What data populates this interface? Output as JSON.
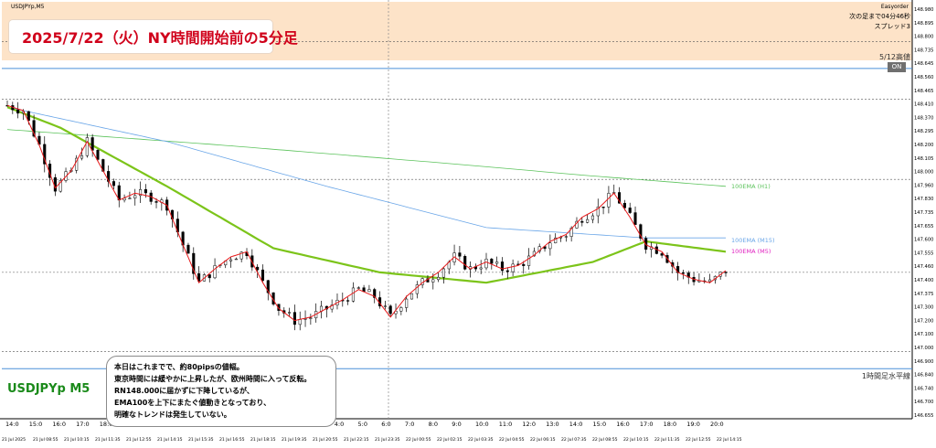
{
  "header": {
    "symbol_tab": "USDJPYp,M5",
    "top_right_1": "Easyorder",
    "top_right_2": "次の足まで04分46秒",
    "top_right_3": "スプレッド3",
    "on_button": "ON"
  },
  "title": "2025/7/22（火）NY時間開始前の5分足",
  "symbol_label": "USDJPYp M5",
  "level_labels": {
    "high_512": "5/12高値",
    "h1_level": "1時間足水平線"
  },
  "ema_labels": {
    "h1": "100EMA (H1)",
    "m15": "100EMA (M15)",
    "m5": "100EMA (M5)"
  },
  "note": {
    "lines": [
      "本日はこれまでで、約80pipsの値幅。",
      "東京時間には緩やかに上昇したが、欧州時間に入って反転。",
      "RN148.000に届かずに下降しているが、",
      "EMA100を上下にまたぐ値動きとなっており、",
      "明確なトレンドは発生していない。"
    ]
  },
  "colors": {
    "header_band": "#fde3c8",
    "title_red": "#d0021b",
    "symbol_green": "#1a8a1a",
    "ema_h1": "#5cc35c",
    "ema_m15": "#6aa6e8",
    "ema_m5": "#7cc41a",
    "fast_ma": "#e8191a",
    "level_blue": "#4a90d9"
  },
  "chart_data": {
    "type": "candlestick",
    "symbol": "USDJPYp",
    "timeframe": "M5",
    "y_ticks": [
      "148.980",
      "148.895",
      "148.800",
      "148.735",
      "148.645",
      "148.560",
      "148.465",
      "148.410",
      "148.370",
      "148.295",
      "148.200",
      "148.105",
      "148.000",
      "147.960",
      "147.830",
      "147.735",
      "147.655",
      "147.600",
      "147.555",
      "147.460",
      "147.400",
      "147.375",
      "147.300",
      "147.200",
      "147.100",
      "147.000",
      "146.900",
      "146.840",
      "146.740",
      "146.700",
      "146.655"
    ],
    "x_top_labels": [
      "14:0",
      "15:0",
      "16:0",
      "17:0",
      "18:0",
      "19:0",
      "20:0",
      "21:0",
      "22:0",
      "23:0",
      "0:0",
      "1:0",
      "2:0",
      "3:0",
      "4:0",
      "5:0",
      "6:0",
      "7:0",
      "8:0",
      "9:0",
      "10:0",
      "11:0",
      "12:0",
      "13:0",
      "14:0",
      "15:0",
      "16:0",
      "17:0",
      "18:0",
      "19:0",
      "20:0"
    ],
    "x_bottom_labels": [
      "21 Jul 2025",
      "21 Jul 08:55",
      "21 Jul 10:15",
      "21 Jul 11:35",
      "21 Jul 12:55",
      "21 Jul 14:15",
      "21 Jul 15:35",
      "21 Jul 16:55",
      "21 Jul 18:15",
      "21 Jul 19:35",
      "21 Jul 20:55",
      "21 Jul 22:15",
      "21 Jul 23:35",
      "22 Jul 00:55",
      "22 Jul 02:15",
      "22 Jul 03:35",
      "22 Jul 04:55",
      "22 Jul 06:15",
      "22 Jul 07:35",
      "22 Jul 08:55",
      "22 Jul 10:15",
      "22 Jul 11:35",
      "22 Jul 12:55",
      "22 Jul 14:15"
    ],
    "horizontal_levels": [
      148.8,
      148.645,
      148.465,
      148.0,
      147.46,
      147.0,
      146.9
    ],
    "price_path": [
      [
        0,
        148.43
      ],
      [
        3,
        148.4
      ],
      [
        6,
        148.2
      ],
      [
        9,
        147.95
      ],
      [
        12,
        148.05
      ],
      [
        15,
        148.22
      ],
      [
        18,
        148.05
      ],
      [
        21,
        147.88
      ],
      [
        24,
        147.92
      ],
      [
        27,
        147.9
      ],
      [
        30,
        147.85
      ],
      [
        33,
        147.62
      ],
      [
        36,
        147.4
      ],
      [
        39,
        147.48
      ],
      [
        42,
        147.55
      ],
      [
        45,
        147.58
      ],
      [
        48,
        147.4
      ],
      [
        51,
        147.25
      ],
      [
        54,
        147.18
      ],
      [
        57,
        147.2
      ],
      [
        60,
        147.25
      ],
      [
        63,
        147.3
      ],
      [
        66,
        147.36
      ],
      [
        69,
        147.32
      ],
      [
        72,
        147.2
      ],
      [
        75,
        147.32
      ],
      [
        78,
        147.4
      ],
      [
        81,
        147.46
      ],
      [
        84,
        147.55
      ],
      [
        87,
        147.48
      ],
      [
        90,
        147.52
      ],
      [
        93,
        147.48
      ],
      [
        96,
        147.5
      ],
      [
        99,
        147.56
      ],
      [
        102,
        147.64
      ],
      [
        105,
        147.68
      ],
      [
        108,
        147.78
      ],
      [
        111,
        147.83
      ],
      [
        114,
        147.92
      ],
      [
        117,
        147.78
      ],
      [
        120,
        147.62
      ],
      [
        123,
        147.58
      ],
      [
        126,
        147.46
      ],
      [
        129,
        147.42
      ],
      [
        132,
        147.4
      ],
      [
        135,
        147.47
      ]
    ],
    "ema_h1": [
      [
        0,
        148.29
      ],
      [
        40,
        148.2
      ],
      [
        80,
        148.1
      ],
      [
        110,
        148.02
      ],
      [
        135,
        147.96
      ]
    ],
    "ema_m15": [
      [
        0,
        148.42
      ],
      [
        30,
        148.22
      ],
      [
        60,
        147.96
      ],
      [
        90,
        147.72
      ],
      [
        120,
        147.66
      ],
      [
        135,
        147.66
      ]
    ],
    "ema_m5": [
      [
        0,
        148.42
      ],
      [
        10,
        148.3
      ],
      [
        30,
        147.96
      ],
      [
        50,
        147.6
      ],
      [
        70,
        147.46
      ],
      [
        90,
        147.4
      ],
      [
        110,
        147.52
      ],
      [
        120,
        147.64
      ],
      [
        135,
        147.58
      ]
    ],
    "ylim": [
      146.62,
      149.0
    ],
    "grid": false
  }
}
